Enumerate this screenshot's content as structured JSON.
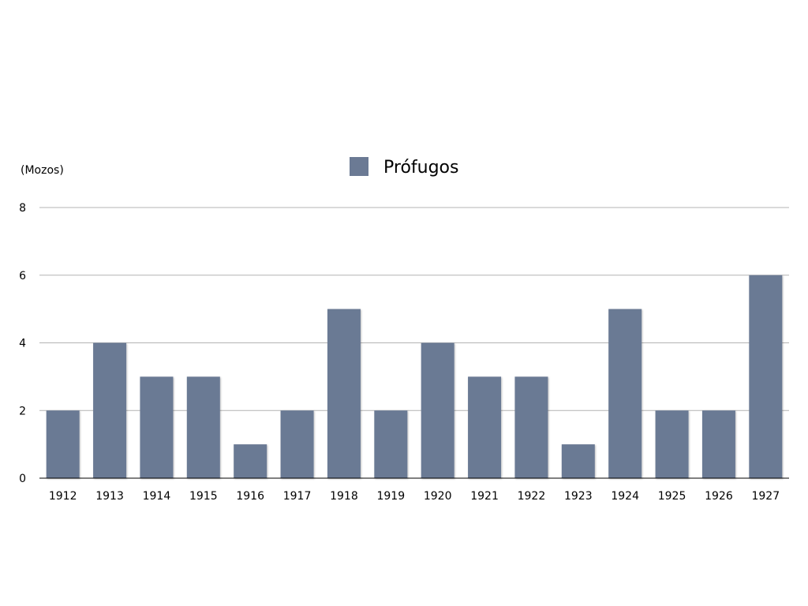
{
  "chart_data": {
    "type": "bar",
    "ylabel": "(Mozos)",
    "categories": [
      "1912",
      "1913",
      "1914",
      "1915",
      "1916",
      "1917",
      "1918",
      "1919",
      "1920",
      "1921",
      "1922",
      "1923",
      "1924",
      "1925",
      "1926",
      "1927"
    ],
    "series": [
      {
        "name": "Prófugos",
        "color": "#6b7a94",
        "values": [
          2,
          4,
          3,
          3,
          1,
          2,
          5,
          2,
          4,
          3,
          3,
          1,
          5,
          2,
          2,
          6
        ]
      }
    ],
    "ylim": [
      0,
      8
    ],
    "yticks": [
      "0",
      "2",
      "4",
      "6",
      "8"
    ],
    "grid": true,
    "legend_position": "top-center"
  }
}
